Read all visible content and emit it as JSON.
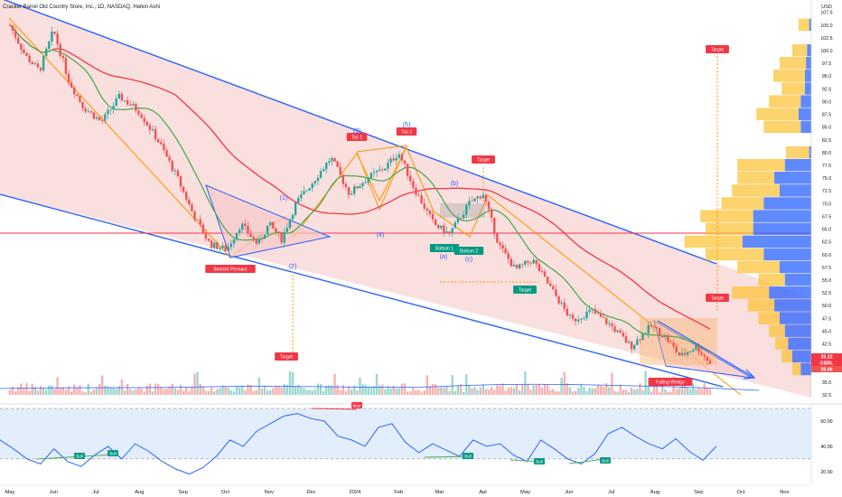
{
  "header": {
    "title": "Cracker Barrel Old Country Store, Inc., 1D, NASDAQ, Heikin Ashi"
  },
  "colors": {
    "up": "#26a69a",
    "down": "#ef5350",
    "channel": "#2962ff",
    "sma_fast": "#4caf50",
    "sma_slow": "#f23645",
    "orange": "#ff9800",
    "bg_zone": "#f7c9c9",
    "rsi_line": "#2962ff",
    "rsi_band": "#e3eefc",
    "vp_up": "#2962ff",
    "vp_down": "#fbc02d"
  },
  "chart_data": [
    {
      "type": "candlestick",
      "title": "Cracker Barrel Old Country Store, Inc., 1D, NASDAQ, Heikin Ashi",
      "chart_style": "Heikin Ashi",
      "x_ticks": [
        "May",
        "Jun",
        "Jul",
        "Aug",
        "Sep",
        "Oct",
        "Nov",
        "Dec",
        "2024",
        "Feb",
        "Mar",
        "Apr",
        "May",
        "Jun",
        "Jul",
        "Aug",
        "Sep",
        "Oct",
        "Nov"
      ],
      "y_ticks": [
        32.5,
        35,
        37.5,
        40,
        42.5,
        45,
        47.5,
        50,
        52.5,
        55,
        57.5,
        60,
        62.5,
        65,
        67.5,
        70,
        72.5,
        75,
        77.5,
        80,
        82.5,
        85,
        87.5,
        90,
        92.5,
        95,
        97.5,
        100,
        102.5,
        105,
        107.5
      ],
      "y_unit_label": "USD",
      "ylim": [
        32.5,
        108.5
      ],
      "price_path": [
        {
          "date": "2023-05-01",
          "close": 105
        },
        {
          "date": "2023-05-12",
          "close": 99
        },
        {
          "date": "2023-05-22",
          "close": 96
        },
        {
          "date": "2023-06-01",
          "close": 104
        },
        {
          "date": "2023-06-12",
          "close": 94
        },
        {
          "date": "2023-06-22",
          "close": 89
        },
        {
          "date": "2023-07-05",
          "close": 86
        },
        {
          "date": "2023-07-18",
          "close": 91
        },
        {
          "date": "2023-08-01",
          "close": 88
        },
        {
          "date": "2023-08-15",
          "close": 82
        },
        {
          "date": "2023-08-28",
          "close": 75
        },
        {
          "date": "2023-09-08",
          "close": 68
        },
        {
          "date": "2023-09-20",
          "close": 62
        },
        {
          "date": "2023-10-02",
          "close": 61
        },
        {
          "date": "2023-10-12",
          "close": 66
        },
        {
          "date": "2023-10-24",
          "close": 62
        },
        {
          "date": "2023-11-01",
          "close": 66
        },
        {
          "date": "2023-11-10",
          "close": 63
        },
        {
          "date": "2023-11-20",
          "close": 70
        },
        {
          "date": "2023-12-04",
          "close": 75
        },
        {
          "date": "2023-12-15",
          "close": 79
        },
        {
          "date": "2023-12-28",
          "close": 72
        },
        {
          "date": "2024-01-10",
          "close": 75
        },
        {
          "date": "2024-01-22",
          "close": 77
        },
        {
          "date": "2024-02-01",
          "close": 80
        },
        {
          "date": "2024-02-12",
          "close": 73
        },
        {
          "date": "2024-02-26",
          "close": 66
        },
        {
          "date": "2024-03-08",
          "close": 64
        },
        {
          "date": "2024-03-22",
          "close": 70
        },
        {
          "date": "2024-04-01",
          "close": 72
        },
        {
          "date": "2024-04-12",
          "close": 62
        },
        {
          "date": "2024-04-24",
          "close": 57
        },
        {
          "date": "2024-05-06",
          "close": 59
        },
        {
          "date": "2024-05-20",
          "close": 53
        },
        {
          "date": "2024-06-03",
          "close": 47
        },
        {
          "date": "2024-06-17",
          "close": 49
        },
        {
          "date": "2024-07-01",
          "close": 46
        },
        {
          "date": "2024-07-15",
          "close": 42
        },
        {
          "date": "2024-07-29",
          "close": 46
        },
        {
          "date": "2024-08-08",
          "close": 44
        },
        {
          "date": "2024-08-19",
          "close": 40
        },
        {
          "date": "2024-08-30",
          "close": 42
        },
        {
          "date": "2024-09-10",
          "close": 38.5
        }
      ],
      "last_values": [
        {
          "label": "39.22",
          "color": "#f23645"
        },
        {
          "label": "CBRL",
          "color": "#f23645"
        },
        {
          "label": "38.06",
          "color": "#ef5350"
        }
      ],
      "pattern_labels": [
        {
          "text": "Bearish Pennant",
          "kind": "red"
        },
        {
          "text": "Top 1",
          "kind": "red"
        },
        {
          "text": "Top 2",
          "kind": "red"
        },
        {
          "text": "Target",
          "kind": "red"
        },
        {
          "text": "Bottom 1",
          "kind": "green"
        },
        {
          "text": "Bottom 2",
          "kind": "green"
        },
        {
          "text": "Target",
          "kind": "green"
        },
        {
          "text": "Target",
          "kind": "red"
        },
        {
          "text": "Target",
          "kind": "red"
        },
        {
          "text": "Target",
          "kind": "red"
        },
        {
          "text": "Falling Wedge",
          "kind": "red"
        }
      ],
      "wave_labels": [
        "(1)",
        "(2)",
        "(3)",
        "(4)",
        "(5)",
        "(a)",
        "(b)",
        "(c)"
      ]
    },
    {
      "type": "line",
      "title": "RSI",
      "y_ticks": [
        20,
        40,
        60
      ],
      "ylim": [
        12,
        70
      ],
      "band": [
        30,
        70
      ],
      "values": [
        45,
        38,
        30,
        26,
        38,
        28,
        24,
        33,
        40,
        30,
        42,
        36,
        28,
        22,
        18,
        23,
        32,
        45,
        40,
        52,
        58,
        64,
        66,
        62,
        60,
        48,
        45,
        40,
        55,
        58,
        43,
        35,
        42,
        37,
        32,
        45,
        40,
        42,
        33,
        28,
        45,
        38,
        30,
        26,
        34,
        50,
        55,
        48,
        42,
        38,
        46,
        36,
        29,
        40
      ],
      "signals": [
        {
          "text": "Bull",
          "kind": "green"
        },
        {
          "text": "Bull",
          "kind": "green"
        },
        {
          "text": "Bear",
          "kind": "red"
        },
        {
          "text": "Bull",
          "kind": "green"
        },
        {
          "text": "Bull",
          "kind": "green"
        },
        {
          "text": "Bull",
          "kind": "green"
        }
      ]
    }
  ]
}
